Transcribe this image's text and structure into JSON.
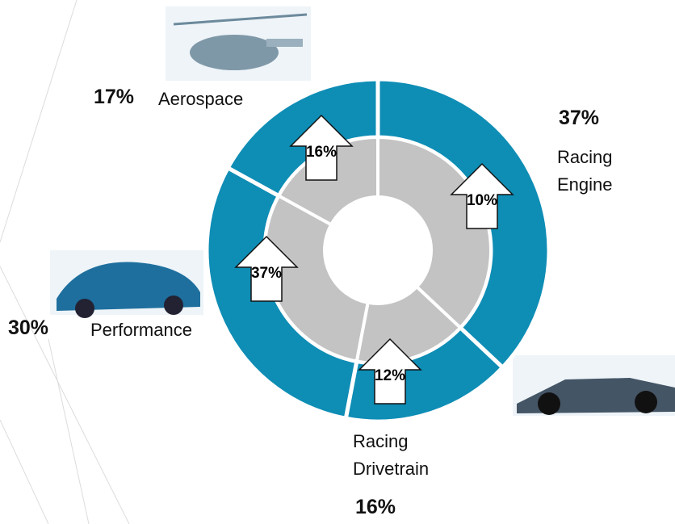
{
  "chart_data": {
    "type": "donut",
    "categories": [
      "Racing Engine",
      "Racing Drivetrain",
      "Performance",
      "Aerospace"
    ],
    "values": [
      37,
      16,
      30,
      17
    ],
    "value_labels": [
      "37%",
      "16%",
      "30%",
      "17%"
    ],
    "growth": [
      10,
      12,
      37,
      16
    ],
    "growth_labels": [
      "10%",
      "12%",
      "37%",
      "16%"
    ],
    "color": "#0e8db5",
    "inner_color": "#c3c3c3"
  }
}
